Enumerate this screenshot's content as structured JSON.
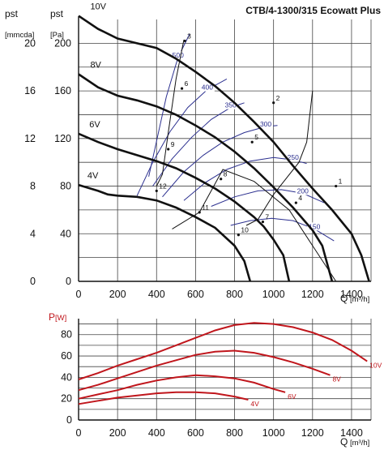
{
  "title": "CTB/4-1300/315 Ecowatt Plus",
  "colors": {
    "pressure_curve": "#111111",
    "efficiency_curve": "#2b2f8f",
    "power_curve": "#c0161c",
    "grid": "#444444"
  },
  "chart_data": [
    {
      "type": "line",
      "name": "pressure",
      "axis_labels": {
        "y_left": "pst",
        "y_left_unit": "[mmcda]",
        "y_right": "pst",
        "y_right_unit": "[Pa]",
        "x": "Q",
        "x_unit": "[m³/h]"
      },
      "x_ticks": [
        0,
        200,
        400,
        600,
        800,
        1000,
        1200,
        1400
      ],
      "y_ticks_pa": [
        0,
        40,
        80,
        120,
        160,
        200
      ],
      "y_ticks_mmcda": [
        0,
        4,
        8,
        12,
        16,
        20
      ],
      "xlim": [
        0,
        1500
      ],
      "ylim": [
        0,
        220
      ],
      "grid": true,
      "series": [
        {
          "name": "10V",
          "points": [
            [
              0,
              223
            ],
            [
              100,
              212
            ],
            [
              200,
              204
            ],
            [
              300,
              200
            ],
            [
              400,
              196
            ],
            [
              500,
              187
            ],
            [
              600,
              176
            ],
            [
              700,
              164
            ],
            [
              800,
              150
            ],
            [
              900,
              134
            ],
            [
              1000,
              117
            ],
            [
              1100,
              97
            ],
            [
              1200,
              78
            ],
            [
              1300,
              60
            ],
            [
              1400,
              40
            ],
            [
              1450,
              22
            ],
            [
              1490,
              0
            ]
          ]
        },
        {
          "name": "8V",
          "points": [
            [
              0,
              174
            ],
            [
              100,
              163
            ],
            [
              200,
              156
            ],
            [
              300,
              152
            ],
            [
              400,
              147
            ],
            [
              500,
              140
            ],
            [
              600,
              131
            ],
            [
              700,
              121
            ],
            [
              800,
              109
            ],
            [
              900,
              95
            ],
            [
              1000,
              79
            ],
            [
              1100,
              62
            ],
            [
              1200,
              43
            ],
            [
              1250,
              30
            ],
            [
              1300,
              0
            ]
          ]
        },
        {
          "name": "6V",
          "points": [
            [
              0,
              124
            ],
            [
              100,
              117
            ],
            [
              200,
              111
            ],
            [
              300,
              106
            ],
            [
              400,
              101
            ],
            [
              500,
              95
            ],
            [
              600,
              87
            ],
            [
              700,
              78
            ],
            [
              800,
              67
            ],
            [
              900,
              54
            ],
            [
              950,
              46
            ],
            [
              1000,
              35
            ],
            [
              1050,
              22
            ],
            [
              1080,
              0
            ]
          ]
        },
        {
          "name": "4V",
          "points": [
            [
              0,
              81
            ],
            [
              100,
              76
            ],
            [
              150,
              73
            ],
            [
              200,
              72
            ],
            [
              300,
              71
            ],
            [
              400,
              68
            ],
            [
              500,
              62
            ],
            [
              600,
              54
            ],
            [
              700,
              45
            ],
            [
              800,
              30
            ],
            [
              850,
              17
            ],
            [
              880,
              0
            ]
          ]
        }
      ],
      "efficiency_lines": [
        {
          "label": "500",
          "points": [
            [
              360,
              88
            ],
            [
              400,
              118
            ],
            [
              450,
              155
            ],
            [
              510,
              188
            ],
            [
              570,
              208
            ]
          ]
        },
        {
          "label": "400",
          "points": [
            [
              300,
              72
            ],
            [
              380,
              100
            ],
            [
              470,
              126
            ],
            [
              560,
              146
            ],
            [
              660,
              161
            ],
            [
              760,
              170
            ]
          ]
        },
        {
          "label": "350",
          "points": [
            [
              380,
              80
            ],
            [
              480,
              103
            ],
            [
              580,
              121
            ],
            [
              680,
              136
            ],
            [
              780,
              146
            ],
            [
              850,
              150
            ]
          ]
        },
        {
          "label": "300",
          "points": [
            [
              430,
              71
            ],
            [
              540,
              92
            ],
            [
              640,
              106
            ],
            [
              740,
              117
            ],
            [
              850,
              125
            ],
            [
              960,
              130
            ],
            [
              1020,
              131
            ]
          ]
        },
        {
          "label": "250",
          "points": [
            [
              540,
              68
            ],
            [
              650,
              83
            ],
            [
              760,
              94
            ],
            [
              880,
              101
            ],
            [
              1000,
              104
            ],
            [
              1100,
              102
            ],
            [
              1170,
              99
            ]
          ]
        },
        {
          "label": "200",
          "points": [
            [
              680,
              63
            ],
            [
              800,
              71
            ],
            [
              920,
              76
            ],
            [
              1040,
              77
            ],
            [
              1150,
              74
            ],
            [
              1260,
              66
            ]
          ]
        },
        {
          "label": "150",
          "points": [
            [
              780,
              47
            ],
            [
              880,
              51
            ],
            [
              990,
              53
            ],
            [
              1100,
              51
            ],
            [
              1210,
              44
            ],
            [
              1310,
              34
            ]
          ]
        }
      ],
      "operating_lines": [
        {
          "points": [
            [
              540,
              203
            ],
            [
              500,
              170
            ],
            [
              460,
              125
            ],
            [
              430,
              90
            ],
            [
              400,
              80
            ]
          ]
        },
        {
          "points": [
            [
              1200,
              160
            ],
            [
              1170,
              117
            ],
            [
              1130,
              100
            ],
            [
              1000,
              73
            ],
            [
              920,
              52
            ],
            [
              860,
              47
            ]
          ]
        },
        {
          "points": [
            [
              1320,
              0
            ],
            [
              1200,
              30
            ],
            [
              1080,
              60
            ],
            [
              900,
              84
            ],
            [
              740,
              94
            ],
            [
              620,
              58
            ],
            [
              480,
              44
            ]
          ]
        }
      ],
      "operating_points": [
        {
          "label": "1",
          "q": 1320,
          "p": 80
        },
        {
          "label": "2",
          "q": 1000,
          "p": 150
        },
        {
          "label": "3",
          "q": 545,
          "p": 202
        },
        {
          "label": "4",
          "q": 1115,
          "p": 66
        },
        {
          "label": "5",
          "q": 890,
          "p": 117
        },
        {
          "label": "6",
          "q": 530,
          "p": 162
        },
        {
          "label": "7",
          "q": 945,
          "p": 50
        },
        {
          "label": "8",
          "q": 730,
          "p": 86
        },
        {
          "label": "9",
          "q": 460,
          "p": 111
        },
        {
          "label": "10",
          "q": 820,
          "p": 39
        },
        {
          "label": "11",
          "q": 620,
          "p": 58
        },
        {
          "label": "12",
          "q": 400,
          "p": 76
        }
      ]
    },
    {
      "type": "line",
      "name": "power",
      "axis_labels": {
        "y": "P",
        "y_unit": "[W]",
        "x": "Q",
        "x_unit": "[m³/h]"
      },
      "x_ticks": [
        0,
        200,
        400,
        600,
        800,
        1000,
        1200,
        1400
      ],
      "y_ticks": [
        0,
        20,
        40,
        60,
        80
      ],
      "xlim": [
        0,
        1500
      ],
      "ylim": [
        0,
        95
      ],
      "grid": true,
      "series": [
        {
          "name": "10V",
          "points": [
            [
              0,
              38
            ],
            [
              100,
              44
            ],
            [
              200,
              51
            ],
            [
              300,
              57
            ],
            [
              400,
              63
            ],
            [
              500,
              70
            ],
            [
              600,
              77
            ],
            [
              700,
              84
            ],
            [
              800,
              89
            ],
            [
              900,
              91
            ],
            [
              1000,
              90
            ],
            [
              1100,
              87
            ],
            [
              1200,
              82
            ],
            [
              1300,
              75
            ],
            [
              1400,
              65
            ],
            [
              1480,
              55
            ]
          ]
        },
        {
          "name": "8V",
          "points": [
            [
              0,
              28
            ],
            [
              100,
              33
            ],
            [
              200,
              39
            ],
            [
              300,
              45
            ],
            [
              400,
              51
            ],
            [
              500,
              56
            ],
            [
              600,
              61
            ],
            [
              700,
              64
            ],
            [
              800,
              65
            ],
            [
              900,
              63
            ],
            [
              1000,
              59
            ],
            [
              1100,
              54
            ],
            [
              1200,
              48
            ],
            [
              1290,
              42
            ]
          ]
        },
        {
          "name": "6V",
          "points": [
            [
              0,
              20
            ],
            [
              100,
              24
            ],
            [
              200,
              28
            ],
            [
              300,
              33
            ],
            [
              400,
              37
            ],
            [
              500,
              40
            ],
            [
              600,
              42
            ],
            [
              700,
              41
            ],
            [
              800,
              39
            ],
            [
              900,
              35
            ],
            [
              1000,
              29
            ],
            [
              1060,
              26
            ]
          ]
        },
        {
          "name": "4V",
          "points": [
            [
              0,
              15
            ],
            [
              100,
              18
            ],
            [
              200,
              21
            ],
            [
              300,
              23
            ],
            [
              400,
              25
            ],
            [
              500,
              26
            ],
            [
              600,
              26
            ],
            [
              700,
              25
            ],
            [
              800,
              22
            ],
            [
              870,
              19
            ]
          ]
        }
      ]
    }
  ]
}
